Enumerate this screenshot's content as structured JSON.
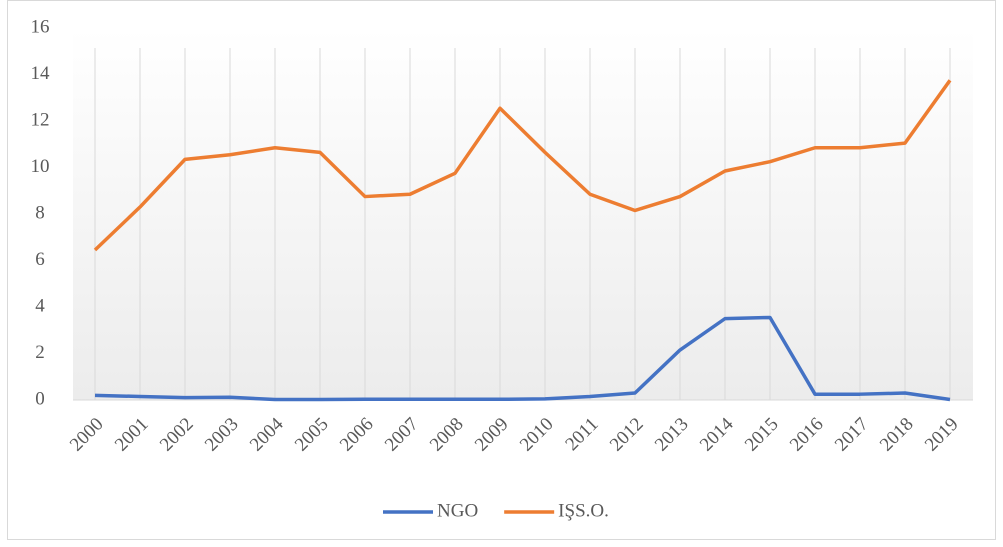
{
  "chart_data": {
    "type": "line",
    "categories": [
      "2000",
      "2001",
      "2002",
      "2003",
      "2004",
      "2005",
      "2006",
      "2007",
      "2008",
      "2009",
      "2010",
      "2011",
      "2012",
      "2013",
      "2014",
      "2015",
      "2016",
      "2017",
      "2018",
      "2019"
    ],
    "series": [
      {
        "name": "NGO",
        "color": "#4472c4",
        "values": [
          0.2,
          0.15,
          0.1,
          0.12,
          0.02,
          0.02,
          0.03,
          0.03,
          0.03,
          0.03,
          0.05,
          0.15,
          0.3,
          2.15,
          3.5,
          3.55,
          0.25,
          0.25,
          0.3,
          0.02
        ]
      },
      {
        "name": "IŞS.O.",
        "color": "#ed7d31",
        "values": [
          6.45,
          8.3,
          10.35,
          10.55,
          10.85,
          10.65,
          8.75,
          8.85,
          9.75,
          12.55,
          10.65,
          8.85,
          8.15,
          8.75,
          9.85,
          10.25,
          10.85,
          10.85,
          11.05,
          13.75
        ]
      }
    ],
    "ylim": [
      0,
      16
    ],
    "yticks": [
      0,
      2,
      4,
      6,
      8,
      10,
      12,
      14,
      16
    ],
    "grid": true,
    "legend": "bottom"
  }
}
